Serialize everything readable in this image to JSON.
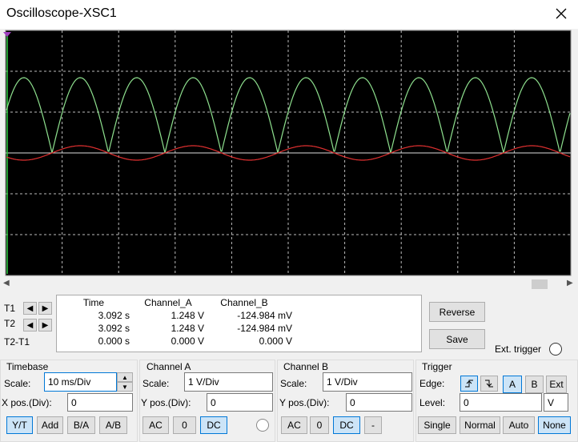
{
  "window": {
    "title": "Oscilloscope-XSC1"
  },
  "readout": {
    "row_labels": [
      "T1",
      "T2",
      "T2-T1"
    ],
    "headers": [
      "Time",
      "Channel_A",
      "Channel_B"
    ],
    "rows": [
      [
        "3.092 s",
        "1.248 V",
        "-124.984 mV"
      ],
      [
        "3.092 s",
        "1.248 V",
        "-124.984 mV"
      ],
      [
        "0.000 s",
        "0.000 V",
        "0.000 V"
      ]
    ]
  },
  "buttons": {
    "reverse": "Reverse",
    "save": "Save",
    "ext_trigger": "Ext. trigger"
  },
  "timebase": {
    "title": "Timebase",
    "scale_label": "Scale:",
    "scale": "10 ms/Div",
    "xpos_label": "X pos.(Div):",
    "xpos": "0",
    "modes": [
      "Y/T",
      "Add",
      "B/A",
      "A/B"
    ]
  },
  "channel_a": {
    "title": "Channel A",
    "scale_label": "Scale:",
    "scale": "1  V/Div",
    "ypos_label": "Y pos.(Div):",
    "ypos": "0",
    "coupling": [
      "AC",
      "0",
      "DC"
    ]
  },
  "channel_b": {
    "title": "Channel B",
    "scale_label": "Scale:",
    "scale": "1  V/Div",
    "ypos_label": "Y pos.(Div):",
    "ypos": "0",
    "coupling": [
      "AC",
      "0",
      "DC",
      "-"
    ]
  },
  "trigger": {
    "title": "Trigger",
    "edge_label": "Edge:",
    "sources": [
      "A",
      "B",
      "Ext"
    ],
    "level_label": "Level:",
    "level": "0",
    "level_unit": "V",
    "modes": [
      "Single",
      "Normal",
      "Auto",
      "None"
    ]
  }
}
